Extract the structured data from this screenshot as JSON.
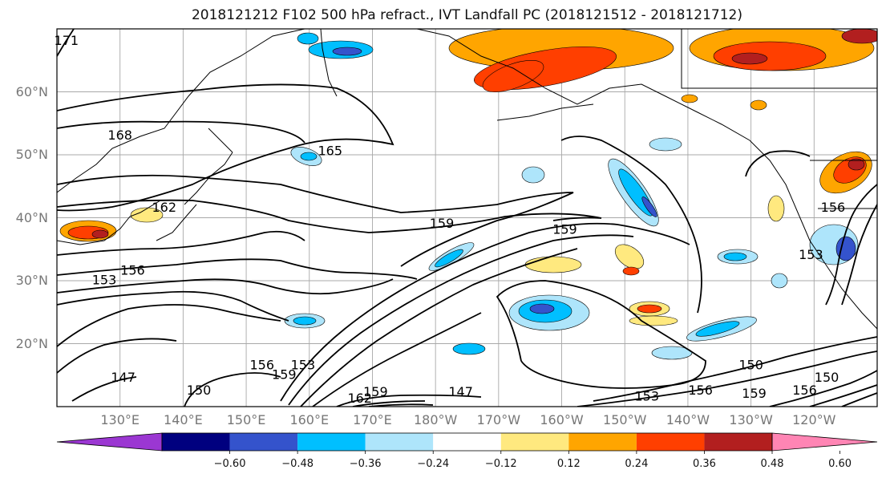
{
  "title": "2018121212 F102 500 hPa refract., IVT Landfall PC (2018121512 - 2018121712)",
  "map": {
    "projection": "equirectangular",
    "lon_range": [
      120,
      250
    ],
    "lat_range": [
      10,
      70
    ],
    "lat_labels": [
      {
        "lat": 60,
        "text": "60°N"
      },
      {
        "lat": 50,
        "text": "50°N"
      },
      {
        "lat": 40,
        "text": "40°N"
      },
      {
        "lat": 30,
        "text": "30°N"
      },
      {
        "lat": 20,
        "text": "20°N"
      }
    ],
    "lon_labels": [
      {
        "lon": 130,
        "text": "130°E"
      },
      {
        "lon": 140,
        "text": "140°E"
      },
      {
        "lon": 150,
        "text": "150°E"
      },
      {
        "lon": 160,
        "text": "160°E"
      },
      {
        "lon": 170,
        "text": "170°E"
      },
      {
        "lon": 180,
        "text": "180°W"
      },
      {
        "lon": 190,
        "text": "170°W"
      },
      {
        "lon": 200,
        "text": "160°W"
      },
      {
        "lon": 210,
        "text": "150°W"
      },
      {
        "lon": 220,
        "text": "140°W"
      },
      {
        "lon": 230,
        "text": "130°W"
      },
      {
        "lon": 240,
        "text": "120°W"
      }
    ],
    "gridlines": true,
    "contour_labels": [
      {
        "text": "171",
        "lon": 121.5,
        "lat": 68
      },
      {
        "text": "168",
        "lon": 130,
        "lat": 53
      },
      {
        "text": "165",
        "lon": 163.3,
        "lat": 50.5
      },
      {
        "text": "162",
        "lon": 137,
        "lat": 41.5
      },
      {
        "text": "159",
        "lon": 181,
        "lat": 39
      },
      {
        "text": "159",
        "lon": 200.5,
        "lat": 38
      },
      {
        "text": "156",
        "lon": 132,
        "lat": 31.5
      },
      {
        "text": "156",
        "lon": 243,
        "lat": 41.5
      },
      {
        "text": "153",
        "lon": 127.5,
        "lat": 30
      },
      {
        "text": "153",
        "lon": 239.5,
        "lat": 34
      },
      {
        "text": "153",
        "lon": 159,
        "lat": 16.5
      },
      {
        "text": "153",
        "lon": 213.5,
        "lat": 11.5
      },
      {
        "text": "159",
        "lon": 156,
        "lat": 15
      },
      {
        "text": "156",
        "lon": 152.5,
        "lat": 16.5
      },
      {
        "text": "150",
        "lon": 142.5,
        "lat": 12.5
      },
      {
        "text": "147",
        "lon": 130.5,
        "lat": 14.5
      },
      {
        "text": "162",
        "lon": 168,
        "lat": 11.2
      },
      {
        "text": "159",
        "lon": 170.5,
        "lat": 12.2
      },
      {
        "text": "147",
        "lon": 184,
        "lat": 12.2
      },
      {
        "text": "156",
        "lon": 222,
        "lat": 12.5
      },
      {
        "text": "150",
        "lon": 230,
        "lat": 16.5
      },
      {
        "text": "159",
        "lon": 230.5,
        "lat": 12
      },
      {
        "text": "156",
        "lon": 238.5,
        "lat": 12.5
      },
      {
        "text": "150",
        "lon": 242,
        "lat": 14.5
      }
    ]
  },
  "colorbar": {
    "ticks": [
      "−0.60",
      "−0.48",
      "−0.36",
      "−0.24",
      "−0.12",
      "0.12",
      "0.24",
      "0.36",
      "0.48",
      "0.60"
    ],
    "colors": {
      "under": "#9b37d2",
      "bins": [
        "#00007f",
        "#3453cc",
        "#00bfff",
        "#aee5fb",
        "#ffffff",
        "#ffe97f",
        "#ffa500",
        "#ff3f00",
        "#b21f1f"
      ],
      "over": "#ff85b4"
    }
  }
}
